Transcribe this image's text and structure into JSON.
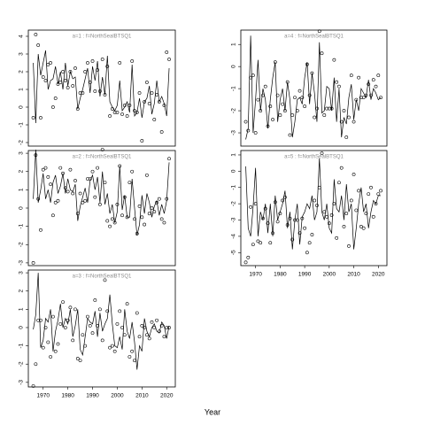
{
  "xlabel": "Year",
  "chart_data": [
    {
      "type": "line",
      "title": "a=1 : f=NorthSealBTSQ1",
      "x": [
        1966,
        1967,
        1968,
        1969,
        1970,
        1971,
        1972,
        1973,
        1974,
        1975,
        1976,
        1977,
        1978,
        1979,
        1980,
        1981,
        1982,
        1983,
        1984,
        1985,
        1986,
        1987,
        1988,
        1989,
        1990,
        1991,
        1992,
        1993,
        1994,
        1995,
        1996,
        1997,
        1998,
        1999,
        2000,
        2001,
        2002,
        2003,
        2004,
        2005,
        2006,
        2007,
        2008,
        2009,
        2010,
        2011,
        2012,
        2013,
        2014,
        2015,
        2016,
        2017,
        2018,
        2019,
        2020,
        2021
      ],
      "series": [
        {
          "style": "line",
          "color": "#000000",
          "values": [
            2.5,
            -0.9,
            3.0,
            1.8,
            2.5,
            3.2,
            1.0,
            1.5,
            1.6,
            2.3,
            1.3,
            2.0,
            1.0,
            2.5,
            1.2,
            2.0,
            1.6,
            1.7,
            -0.1,
            0.5,
            1.0,
            1.6,
            2.2,
            0.8,
            2.3,
            1.5,
            2.6,
            0.6,
            1.7,
            0.7,
            2.9,
            0.3,
            0.0,
            -0.2,
            0.1,
            1.5,
            -0.2,
            0.0,
            0.3,
            -0.3,
            2.4,
            -0.5,
            -0.3,
            0.5,
            -0.6,
            0.3,
            0.5,
            1.2,
            -0.4,
            0.2,
            1.5,
            0.3,
            0.6,
            0.2,
            -0.5,
            2.2
          ]
        },
        {
          "style": "points",
          "color": "#000000",
          "values": [
            -0.6,
            4.1,
            3.5,
            -0.6,
            1.7,
            1.5,
            2.4,
            2.5,
            0.0,
            0.5,
            1.3,
            1.4,
            2.0,
            1.5,
            1.1,
            2.0,
            1.2,
            2.2,
            -0.1,
            0.8,
            0.8,
            2.0,
            2.5,
            1.4,
            2.6,
            0.9,
            2.1,
            0.9,
            2.7,
            0.7,
            2.3,
            -0.5,
            -0.1,
            -0.3,
            -0.3,
            2.5,
            -0.4,
            0.1,
            -0.5,
            0.1,
            2.6,
            -0.2,
            -0.3,
            0.8,
            -1.9,
            0.3,
            1.4,
            0.2,
            0.8,
            -0.7,
            0.7,
            0.3,
            -1.4,
            0.1,
            3.1,
            2.7
          ]
        }
      ],
      "xlim": [
        1964,
        2023.5
      ],
      "ylim": [
        -2.2,
        4.35
      ],
      "yticks": [
        -2,
        -1,
        0,
        1,
        2,
        3,
        4
      ]
    },
    {
      "type": "line",
      "title": "a=2 : f=NorthSealBTSQ1",
      "x": [
        1966,
        1967,
        1968,
        1969,
        1970,
        1971,
        1972,
        1973,
        1974,
        1975,
        1976,
        1977,
        1978,
        1979,
        1980,
        1981,
        1982,
        1983,
        1984,
        1985,
        1986,
        1987,
        1988,
        1989,
        1990,
        1991,
        1992,
        1993,
        1994,
        1995,
        1996,
        1997,
        1998,
        1999,
        2000,
        2001,
        2002,
        2003,
        2004,
        2005,
        2006,
        2007,
        2008,
        2009,
        2010,
        2011,
        2012,
        2013,
        2014,
        2015,
        2016,
        2017,
        2018,
        2019,
        2020,
        2021
      ],
      "series": [
        {
          "style": "line",
          "color": "#000000",
          "values": [
            0.5,
            3.2,
            0.3,
            1.0,
            1.9,
            0.5,
            1.0,
            0.3,
            1.4,
            1.8,
            0.8,
            1.2,
            1.9,
            0.8,
            1.6,
            1.0,
            0.9,
            1.3,
            -0.7,
            0.1,
            0.6,
            1.1,
            0.3,
            1.5,
            1.8,
            1.0,
            1.7,
            0.3,
            2.0,
            0.2,
            0.8,
            -0.3,
            0.2,
            -0.8,
            -0.2,
            2.3,
            -0.1,
            0.7,
            -0.5,
            -0.5,
            1.6,
            0.0,
            -1.5,
            -0.9,
            0.7,
            -0.3,
            0.8,
            0.3,
            -0.5,
            0.1,
            0.4,
            -0.4,
            0.2,
            -0.3,
            0.4,
            2.5
          ]
        },
        {
          "style": "points",
          "color": "#000000",
          "values": [
            -3.0,
            2.9,
            0.5,
            -1.2,
            2.1,
            2.2,
            1.7,
            1.3,
            -0.4,
            0.3,
            0.4,
            2.2,
            1.9,
            1.1,
            0.9,
            2.1,
            0.8,
            1.5,
            -0.3,
            0.8,
            0.3,
            0.4,
            1.6,
            1.6,
            2.0,
            0.6,
            2.2,
            0.2,
            3.2,
            1.4,
            -0.7,
            -1.0,
            -0.6,
            -0.8,
            0.2,
            2.3,
            -0.4,
            0.6,
            -0.5,
            1.4,
            2.0,
            -0.6,
            -1.4,
            0.1,
            -0.5,
            -0.9,
            1.8,
            -0.3,
            0.0,
            -0.2,
            0.3,
            0.5,
            -0.6,
            -0.8,
            0.5,
            2.7
          ]
        }
      ],
      "xlim": [
        1964,
        2023.5
      ],
      "ylim": [
        -3.15,
        3.15
      ],
      "yticks": [
        -3,
        -2,
        -1,
        0,
        1,
        2,
        3
      ]
    },
    {
      "type": "line",
      "title": "a=3 : f=NorthSealBTSQ1",
      "x": [
        1966,
        1967,
        1968,
        1969,
        1970,
        1971,
        1972,
        1973,
        1974,
        1975,
        1976,
        1977,
        1978,
        1979,
        1980,
        1981,
        1982,
        1983,
        1984,
        1985,
        1986,
        1987,
        1988,
        1989,
        1990,
        1991,
        1992,
        1993,
        1994,
        1995,
        1996,
        1997,
        1998,
        1999,
        2000,
        2001,
        2002,
        2003,
        2004,
        2005,
        2006,
        2007,
        2008,
        2009,
        2010,
        2011,
        2012,
        2013,
        2014,
        2015,
        2016,
        2017,
        2018,
        2019,
        2020,
        2021
      ],
      "series": [
        {
          "style": "line",
          "color": "#000000",
          "values": [
            -0.1,
            0.7,
            3.0,
            -1.1,
            -0.7,
            0.5,
            0.3,
            1.0,
            -1.3,
            -0.2,
            0.4,
            1.3,
            0.0,
            0.5,
            0.2,
            1.0,
            -0.5,
            0.1,
            1.0,
            -1.2,
            -1.5,
            -0.5,
            0.5,
            0.3,
            0.2,
            0.9,
            -0.5,
            0.8,
            -0.2,
            0.2,
            0.5,
            1.8,
            0.2,
            -1.0,
            -1.1,
            -0.5,
            -1.2,
            1.0,
            -0.2,
            -0.6,
            0.3,
            -0.8,
            -2.3,
            -1.0,
            -1.3,
            0.5,
            -0.2,
            -0.5,
            0.0,
            0.2,
            -0.2,
            -0.3,
            0.3,
            0.1,
            -0.6,
            0.1
          ]
        },
        {
          "style": "points",
          "color": "#000000",
          "values": [
            -3.2,
            -2.0,
            0.4,
            0.4,
            -1.1,
            0.0,
            -0.8,
            -1.6,
            0.6,
            -1.3,
            -0.9,
            0.2,
            1.4,
            0.0,
            0.4,
            1.1,
            -0.7,
            1.0,
            -1.7,
            -1.8,
            -0.4,
            -1.0,
            0.6,
            0.1,
            -0.3,
            1.5,
            0.1,
            1.0,
            -0.7,
            2.6,
            0.9,
            -1.1,
            -1.0,
            -1.3,
            0.2,
            0.9,
            0.0,
            -0.4,
            1.3,
            -1.6,
            -1.3,
            -1.8,
            0.8,
            -0.5,
            0.1,
            0.0,
            -0.4,
            -0.6,
            0.3,
            0.0,
            0.4,
            -0.2,
            0.1,
            -0.5,
            0.0,
            0.0
          ]
        }
      ],
      "xlim": [
        1964,
        2023.5
      ],
      "ylim": [
        -3.25,
        3.15
      ],
      "yticks": [
        -3,
        -2,
        -1,
        0,
        1,
        2,
        3
      ],
      "xticks": [
        1970,
        1980,
        1990,
        2000,
        2010,
        2020
      ]
    },
    {
      "type": "line",
      "title": "a=4 : f=NorthSealBTSQ1",
      "x": [
        1966,
        1967,
        1968,
        1969,
        1970,
        1971,
        1972,
        1973,
        1974,
        1975,
        1976,
        1977,
        1978,
        1979,
        1980,
        1981,
        1982,
        1983,
        1984,
        1985,
        1986,
        1987,
        1988,
        1989,
        1990,
        1991,
        1992,
        1993,
        1994,
        1995,
        1996,
        1997,
        1998,
        1999,
        2000,
        2001,
        2002,
        2003,
        2004,
        2005,
        2006,
        2007,
        2008,
        2009,
        2010,
        2011,
        2012,
        2013,
        2014,
        2015,
        2016,
        2017,
        2018,
        2019,
        2020,
        2021
      ],
      "series": [
        {
          "style": "line",
          "color": "#000000",
          "values": [
            -3.3,
            -2.8,
            1.4,
            -3.0,
            -1.5,
            0.3,
            -2.0,
            -1.0,
            -1.5,
            -2.8,
            -1.5,
            -0.5,
            0.2,
            -2.5,
            -1.5,
            -1.0,
            -2.0,
            -0.7,
            -1.5,
            -3.2,
            -2.5,
            -1.5,
            -1.4,
            -1.7,
            -0.5,
            0.2,
            -1.7,
            -0.3,
            -1.2,
            -2.5,
            1.1,
            -2.1,
            -2.0,
            -0.9,
            -1.0,
            -2.0,
            -0.5,
            -2.5,
            -1.0,
            -3.2,
            -2.3,
            -2.6,
            -1.4,
            -0.8,
            -2.4,
            -1.5,
            -2.0,
            -1.0,
            -1.2,
            -1.4,
            -0.6,
            -1.5,
            -1.0,
            -1.2,
            -1.5,
            -1.4
          ]
        },
        {
          "style": "points",
          "color": "#000000",
          "values": [
            -2.5,
            -2.9,
            -0.5,
            -0.4,
            -3.0,
            -1.5,
            -2.0,
            -1.3,
            -0.9,
            -2.7,
            -1.8,
            -2.4,
            0.2,
            -1.3,
            -2.2,
            -1.7,
            -2.0,
            -0.7,
            -3.1,
            -2.2,
            -1.4,
            -2.0,
            -1.1,
            -1.4,
            -1.8,
            0.1,
            -1.3,
            -0.3,
            -2.3,
            -1.9,
            1.6,
            0.6,
            -2.2,
            -1.9,
            -1.9,
            -1.9,
            0.3,
            -0.7,
            -0.9,
            -2.5,
            -2.0,
            -3.2,
            -2.3,
            -0.4,
            -2.5,
            -1.5,
            -0.5,
            -1.4,
            -1.4,
            -1.3,
            -0.8,
            -1.3,
            -0.6,
            -0.9,
            -0.4,
            -1.4
          ]
        }
      ],
      "xlim": [
        1964,
        2023.5
      ],
      "ylim": [
        -3.6,
        1.65
      ],
      "yticks": [
        -3,
        -2,
        -1,
        0,
        1
      ]
    },
    {
      "type": "line",
      "title": "a=5 : f=NorthSealBTSQ1",
      "x": [
        1966,
        1967,
        1968,
        1969,
        1970,
        1971,
        1972,
        1973,
        1974,
        1975,
        1976,
        1977,
        1978,
        1979,
        1980,
        1981,
        1982,
        1983,
        1984,
        1985,
        1986,
        1987,
        1988,
        1989,
        1990,
        1991,
        1992,
        1993,
        1994,
        1995,
        1996,
        1997,
        1998,
        1999,
        2000,
        2001,
        2002,
        2003,
        2004,
        2005,
        2006,
        2007,
        2008,
        2009,
        2010,
        2011,
        2012,
        2013,
        2014,
        2015,
        2016,
        2017,
        2018,
        2019,
        2020,
        2021
      ],
      "series": [
        {
          "style": "line",
          "color": "#000000",
          "values": [
            0.3,
            -3.5,
            -4.0,
            -2.2,
            0.2,
            -4.0,
            -2.5,
            -3.0,
            -2.0,
            -3.8,
            -2.0,
            -4.0,
            -1.5,
            -3.0,
            -2.5,
            -2.0,
            -1.2,
            -3.5,
            -2.5,
            -4.8,
            -3.0,
            -2.0,
            -4.5,
            -2.8,
            -2.5,
            -2.0,
            -2.3,
            -1.5,
            -3.0,
            -2.5,
            0.8,
            -2.5,
            -3.0,
            -2.0,
            -3.5,
            -3.8,
            -0.5,
            -2.3,
            -2.5,
            -1.5,
            -3.0,
            -0.8,
            -2.5,
            -2.0,
            -4.8,
            -3.5,
            -2.0,
            -1.0,
            -2.5,
            -2.0,
            -3.5,
            -2.5,
            -1.8,
            -2.0,
            -1.5,
            -1.5
          ]
        },
        {
          "style": "points",
          "color": "#000000",
          "values": [
            -5.6,
            -5.3,
            -2.2,
            -4.5,
            -2.0,
            -4.3,
            -4.4,
            -2.9,
            -2.3,
            -3.2,
            -4.4,
            -3.8,
            -1.9,
            -3.1,
            -2.6,
            -1.8,
            -1.6,
            -3.3,
            -2.9,
            -4.2,
            -3.0,
            -3.0,
            -3.8,
            -2.9,
            -3.5,
            -5.0,
            -4.4,
            -3.9,
            -1.8,
            -2.1,
            -1.0,
            1.1,
            -2.5,
            -2.8,
            -3.2,
            -2.7,
            -2.0,
            -4.1,
            -0.7,
            0.2,
            -3.4,
            -2.6,
            -4.6,
            -1.8,
            -0.2,
            -2.4,
            -1.2,
            -3.4,
            -3.5,
            -2.6,
            -1.4,
            -1.0,
            -2.8,
            -2.0,
            -1.4,
            -1.2
          ]
        }
      ],
      "xlim": [
        1964,
        2023.5
      ],
      "ylim": [
        -5.8,
        1.27
      ],
      "yticks": [
        -5,
        -4,
        -3,
        -2,
        -1,
        0,
        1
      ],
      "xticks": [
        1970,
        1980,
        1990,
        2000,
        2010,
        2020
      ]
    }
  ]
}
